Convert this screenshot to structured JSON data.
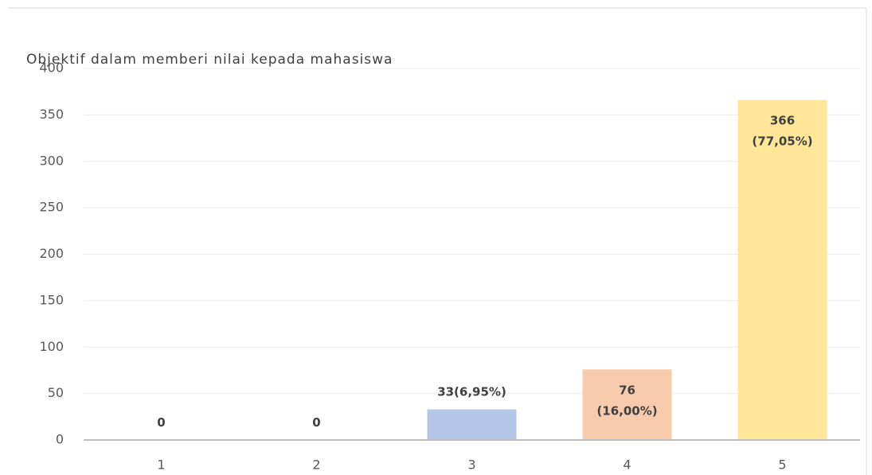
{
  "chart_data": {
    "type": "bar",
    "title": "Objektif dalam memberi nilai kepada mahasiswa",
    "categories": [
      "1",
      "2",
      "3",
      "4",
      "5"
    ],
    "values": [
      0,
      0,
      33,
      76,
      366
    ],
    "value_labels": [
      [
        "0"
      ],
      [
        "0"
      ],
      [
        "33(6,95%)"
      ],
      [
        "76",
        "(16,00%)"
      ],
      [
        "366",
        "(77,05%)"
      ]
    ],
    "colors": [
      "#c5e0b4",
      "#c5e0b4",
      "#b4c7e7",
      "#f8cbad",
      "#ffe699"
    ],
    "ylim": [
      0,
      400
    ],
    "yticks": [
      0,
      50,
      100,
      150,
      200,
      250,
      300,
      350,
      400
    ],
    "grid": true
  }
}
